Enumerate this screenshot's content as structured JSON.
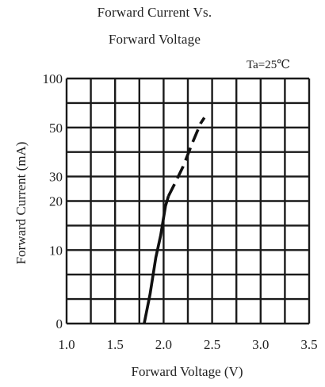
{
  "chart_data": {
    "type": "line",
    "title_line1": "Forward Current Vs.",
    "title_line2": "Forward Voltage",
    "condition": "Ta=25℃",
    "xlabel": "Forward Voltage (V)",
    "ylabel": "Forward  Current (mA)",
    "x_ticks": [
      "1.0",
      "1.5",
      "2.0",
      "2.5",
      "3.0",
      "3.5"
    ],
    "xlim": [
      1.0,
      3.5
    ],
    "y_ticks": [
      {
        "label": "0",
        "value": 0
      },
      {
        "label": "10",
        "value": 10
      },
      {
        "label": "20",
        "value": 20
      },
      {
        "label": "30",
        "value": 30
      },
      {
        "label": "50",
        "value": 50
      },
      {
        "label": "100",
        "value": 100
      }
    ],
    "grid": true,
    "series": [
      {
        "style": "solid",
        "points": [
          [
            1.8,
            0
          ],
          [
            1.86,
            4
          ],
          [
            1.92,
            9
          ],
          [
            1.97,
            13
          ],
          [
            2.02,
            19
          ],
          [
            2.05,
            22
          ]
        ]
      },
      {
        "style": "dashed",
        "points": [
          [
            2.05,
            22
          ],
          [
            2.12,
            27.5
          ],
          [
            2.2,
            34
          ],
          [
            2.3,
            44
          ],
          [
            2.38,
            54
          ],
          [
            2.42,
            60
          ]
        ]
      }
    ]
  }
}
